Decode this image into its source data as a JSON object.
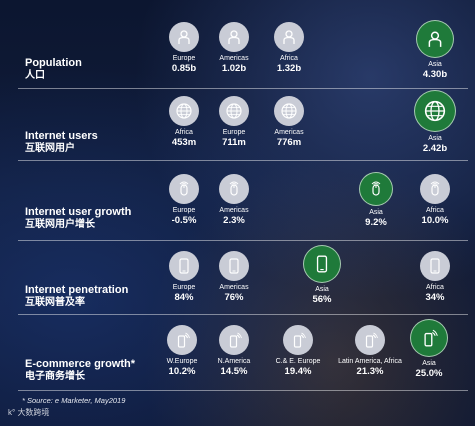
{
  "rows": [
    {
      "title": "Population",
      "subtitle": "人口",
      "icon": "person-icon",
      "items": [
        {
          "label": "Europe",
          "value": "0.85b"
        },
        {
          "label": "Americas",
          "value": "1.02b"
        },
        {
          "label": "Africa",
          "value": "1.32b"
        },
        {
          "label": "Asia",
          "value": "4.30b"
        }
      ]
    },
    {
      "title": "Internet users",
      "subtitle": "互联网用户",
      "icon": "globe-icon",
      "items": [
        {
          "label": "Africa",
          "value": "453m"
        },
        {
          "label": "Europe",
          "value": "711m"
        },
        {
          "label": "Americas",
          "value": "776m"
        },
        {
          "label": "Asia",
          "value": "2.42b"
        }
      ]
    },
    {
      "title": "Internet user growth",
      "subtitle": "互联网用户增长",
      "icon": "mouse-signal-icon",
      "items": [
        {
          "label": "Europe",
          "value": "-0.5%"
        },
        {
          "label": "Americas",
          "value": "2.3%"
        },
        {
          "label": "Asia",
          "value": "9.2%"
        },
        {
          "label": "Africa",
          "value": "10.0%"
        }
      ]
    },
    {
      "title": "Internet penetration",
      "subtitle": "互联网普及率",
      "icon": "smartphone-icon",
      "items": [
        {
          "label": "Europe",
          "value": "84%"
        },
        {
          "label": "Americas",
          "value": "76%"
        },
        {
          "label": "Asia",
          "value": "56%"
        },
        {
          "label": "Africa",
          "value": "34%"
        }
      ]
    },
    {
      "title": "E-commerce growth*",
      "subtitle": "电子商务增长",
      "icon": "phone-signal-icon",
      "items": [
        {
          "label": "W.Europe",
          "value": "10.2%"
        },
        {
          "label": "N.America",
          "value": "14.5%"
        },
        {
          "label": "C.& E. Europe",
          "value": "19.4%"
        },
        {
          "label": "Latin America, Africa",
          "value": "21.3%"
        },
        {
          "label": "Asia",
          "value": "25.0%"
        }
      ]
    }
  ],
  "source": "* Source: e Marketer, May2019",
  "logo_text": "大数跨境",
  "colors": {
    "highlight": "#1f7a3a",
    "icon_bg": "#c9ccd6"
  }
}
